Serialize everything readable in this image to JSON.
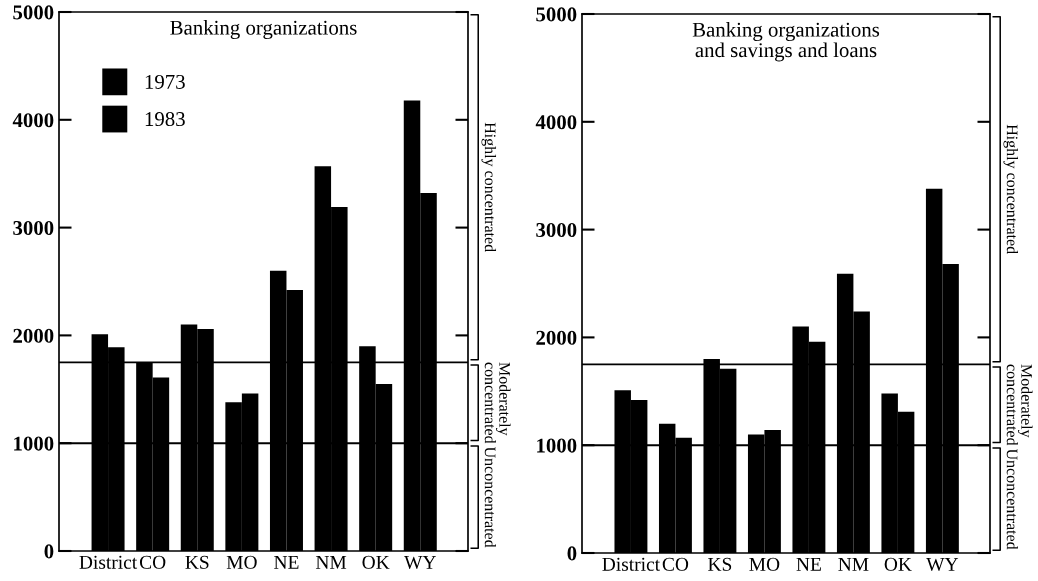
{
  "chart_data": [
    {
      "type": "bar",
      "title": "Banking organizations",
      "categories": [
        "District",
        "CO",
        "KS",
        "MO",
        "NE",
        "NM",
        "OK",
        "WY"
      ],
      "series": [
        {
          "name": "1973",
          "color": "#000000",
          "values": [
            2010,
            1750,
            2100,
            1380,
            2600,
            3570,
            1900,
            4180
          ]
        },
        {
          "name": "1983",
          "color": "#000000",
          "values": [
            1890,
            1610,
            2060,
            1460,
            2420,
            3190,
            1550,
            3320
          ]
        }
      ],
      "ylim": [
        0,
        5000
      ],
      "yticks": [
        0,
        1000,
        2000,
        3000,
        4000,
        5000
      ],
      "grid": false,
      "legend": "top left",
      "ref_lines": [
        {
          "axis": "y",
          "value": 1000
        },
        {
          "axis": "y",
          "value": 1750
        }
      ],
      "annotations": [
        "Highly concentrated",
        "Moderately\nconcentrated",
        "Unconcentrated"
      ]
    },
    {
      "type": "bar",
      "title": "Banking organizations\nand savings and loans",
      "categories": [
        "District",
        "CO",
        "KS",
        "MO",
        "NE",
        "NM",
        "OK",
        "WY"
      ],
      "series": [
        {
          "color": "#000000",
          "values": [
            1510,
            1200,
            1800,
            1100,
            2100,
            2590,
            1480,
            3380
          ]
        },
        {
          "color": "#000000",
          "values": [
            1420,
            1070,
            1710,
            1140,
            1960,
            2240,
            1310,
            2680
          ]
        }
      ],
      "ylim": [
        0,
        5000
      ],
      "yticks": [
        0,
        1000,
        2000,
        3000,
        4000,
        5000
      ],
      "grid": false,
      "ref_lines": [
        {
          "axis": "y",
          "value": 1000
        },
        {
          "axis": "y",
          "value": 1750
        }
      ],
      "annotations": [
        "Highly concentrated",
        "Moderately\nconcentrated",
        "Unconcentrated"
      ]
    }
  ]
}
